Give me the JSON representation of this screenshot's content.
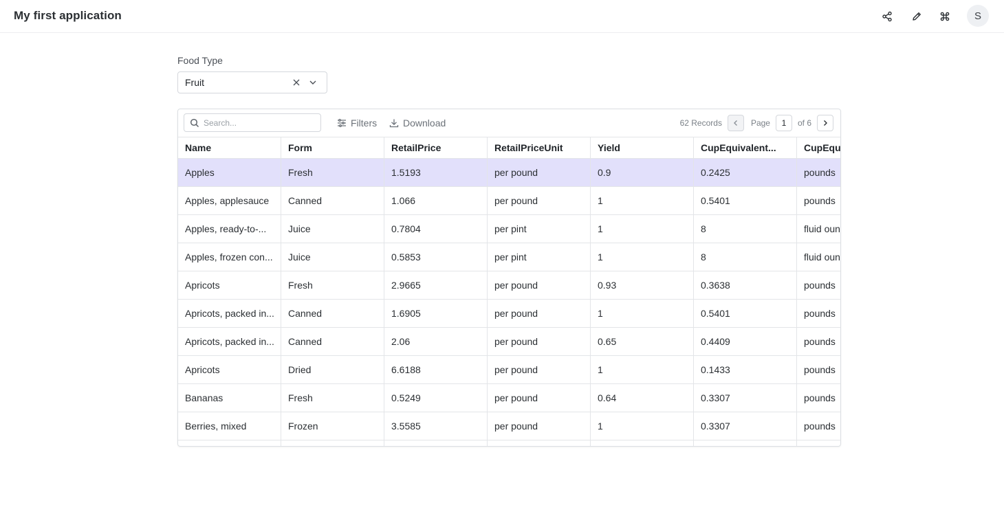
{
  "app": {
    "title": "My first application",
    "avatar_initial": "S",
    "icons": [
      "share-icon",
      "edit-pencil-icon",
      "command-icon"
    ]
  },
  "filter": {
    "label": "Food Type",
    "value": "Fruit"
  },
  "table": {
    "search_placeholder": "Search...",
    "filters_label": "Filters",
    "download_label": "Download",
    "records_text": "62 Records",
    "page_label": "Page",
    "current_page": "1",
    "page_of": "of 6",
    "columns": [
      "Name",
      "Form",
      "RetailPrice",
      "RetailPriceUnit",
      "Yield",
      "CupEquivalent...",
      "CupEqui"
    ],
    "rows": [
      [
        "Apples",
        "Fresh",
        "1.5193",
        "per pound",
        "0.9",
        "0.2425",
        "pounds"
      ],
      [
        "Apples, applesauce",
        "Canned",
        "1.066",
        "per pound",
        "1",
        "0.5401",
        "pounds"
      ],
      [
        "Apples, ready-to-...",
        "Juice",
        "0.7804",
        "per pint",
        "1",
        "8",
        "fluid oun"
      ],
      [
        "Apples, frozen con...",
        "Juice",
        "0.5853",
        "per pint",
        "1",
        "8",
        "fluid oun"
      ],
      [
        "Apricots",
        "Fresh",
        "2.9665",
        "per pound",
        "0.93",
        "0.3638",
        "pounds"
      ],
      [
        "Apricots, packed in...",
        "Canned",
        "1.6905",
        "per pound",
        "1",
        "0.5401",
        "pounds"
      ],
      [
        "Apricots, packed in...",
        "Canned",
        "2.06",
        "per pound",
        "0.65",
        "0.4409",
        "pounds"
      ],
      [
        "Apricots",
        "Dried",
        "6.6188",
        "per pound",
        "1",
        "0.1433",
        "pounds"
      ],
      [
        "Bananas",
        "Fresh",
        "0.5249",
        "per pound",
        "0.64",
        "0.3307",
        "pounds"
      ],
      [
        "Berries, mixed",
        "Frozen",
        "3.5585",
        "per pound",
        "1",
        "0.3307",
        "pounds"
      ],
      [
        "",
        "",
        "",
        "",
        "",
        "",
        ""
      ]
    ],
    "selected_row": 0
  },
  "colors": {
    "selected_row": "#e2e0fb",
    "border": "#e3e5e8",
    "muted_text": "#6b7178"
  }
}
